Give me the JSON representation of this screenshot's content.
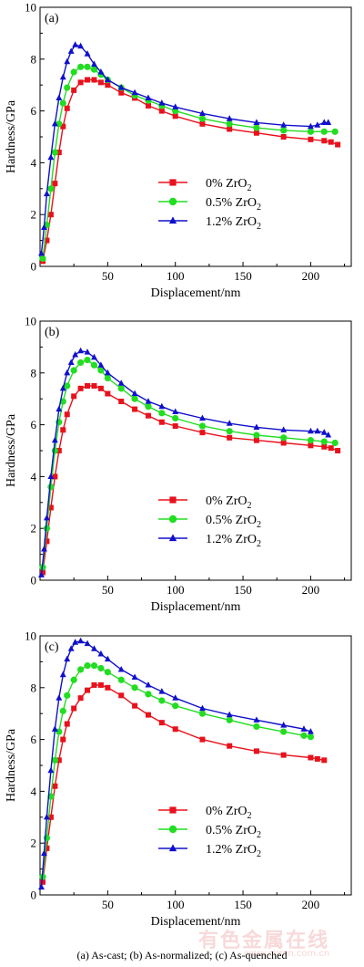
{
  "caption": "(a) As-cast; (b) As-normalized; (c) As-quenched",
  "watermark": "有色金属在线",
  "watermark_sub": "www.cnmn.com.cn",
  "colors": {
    "s0": "#e8111c",
    "s05": "#22dd22",
    "s12": "#1010cc"
  },
  "chart_data": [
    {
      "type": "line",
      "panel_label": "(a)",
      "xlabel": "Displacement/nm",
      "ylabel": "Hardness/GPa",
      "xlim": [
        0,
        230
      ],
      "ylim": [
        0,
        10
      ],
      "xticks": [
        "50",
        "100",
        "150",
        "200"
      ],
      "yticks": [
        "0",
        "2",
        "4",
        "6",
        "8",
        "10"
      ],
      "legend": "center",
      "series": [
        {
          "name": "0% ZrO",
          "sub": "2",
          "marker": "square",
          "x": [
            2,
            5,
            8,
            11,
            14,
            17,
            20,
            25,
            30,
            35,
            40,
            45,
            50,
            60,
            70,
            80,
            90,
            100,
            120,
            140,
            160,
            180,
            200,
            210,
            215,
            220
          ],
          "y": [
            0.2,
            1.0,
            2.0,
            3.2,
            4.4,
            5.4,
            6.1,
            6.8,
            7.1,
            7.2,
            7.2,
            7.1,
            7.0,
            6.7,
            6.5,
            6.2,
            6.0,
            5.8,
            5.5,
            5.3,
            5.15,
            5.0,
            4.9,
            4.85,
            4.8,
            4.7
          ]
        },
        {
          "name": "0.5% ZrO",
          "sub": "2",
          "marker": "circle",
          "x": [
            2,
            5,
            8,
            11,
            14,
            17,
            20,
            25,
            30,
            35,
            40,
            45,
            50,
            60,
            70,
            80,
            90,
            100,
            120,
            140,
            160,
            180,
            200,
            210,
            218
          ],
          "y": [
            0.3,
            1.6,
            3.0,
            4.4,
            5.5,
            6.3,
            6.9,
            7.5,
            7.7,
            7.7,
            7.6,
            7.4,
            7.2,
            6.9,
            6.6,
            6.4,
            6.2,
            6.0,
            5.7,
            5.5,
            5.35,
            5.25,
            5.2,
            5.2,
            5.2
          ]
        },
        {
          "name": "1.2% ZrO",
          "sub": "2",
          "marker": "triangle",
          "x": [
            1,
            3,
            5,
            8,
            11,
            14,
            17,
            20,
            23,
            26,
            30,
            35,
            40,
            45,
            50,
            60,
            70,
            80,
            90,
            100,
            120,
            140,
            160,
            180,
            200,
            205,
            210,
            213
          ],
          "y": [
            0.5,
            1.5,
            2.8,
            4.2,
            5.5,
            6.5,
            7.3,
            7.9,
            8.3,
            8.55,
            8.5,
            8.2,
            7.8,
            7.5,
            7.2,
            6.9,
            6.7,
            6.5,
            6.3,
            6.15,
            5.9,
            5.7,
            5.55,
            5.45,
            5.4,
            5.45,
            5.55,
            5.55
          ]
        }
      ]
    },
    {
      "type": "line",
      "panel_label": "(b)",
      "xlabel": "Displacement/nm",
      "ylabel": "Hardness/GPa",
      "xlim": [
        0,
        230
      ],
      "ylim": [
        0,
        10
      ],
      "xticks": [
        "50",
        "100",
        "150",
        "200"
      ],
      "yticks": [
        "0",
        "2",
        "4",
        "6",
        "8",
        "10"
      ],
      "legend": "center",
      "series": [
        {
          "name": "0% ZrO",
          "sub": "2",
          "marker": "square",
          "x": [
            2,
            5,
            8,
            11,
            14,
            17,
            20,
            25,
            30,
            35,
            40,
            45,
            50,
            60,
            70,
            80,
            90,
            100,
            120,
            140,
            160,
            180,
            200,
            210,
            215,
            220
          ],
          "y": [
            0.3,
            1.5,
            2.8,
            4.0,
            5.0,
            5.8,
            6.4,
            7.1,
            7.4,
            7.5,
            7.5,
            7.4,
            7.2,
            6.9,
            6.6,
            6.35,
            6.1,
            5.95,
            5.7,
            5.5,
            5.4,
            5.3,
            5.2,
            5.15,
            5.1,
            5.0
          ]
        },
        {
          "name": "0.5% ZrO",
          "sub": "2",
          "marker": "circle",
          "x": [
            2,
            5,
            8,
            11,
            14,
            17,
            20,
            25,
            30,
            35,
            40,
            45,
            50,
            60,
            70,
            80,
            90,
            100,
            120,
            140,
            160,
            180,
            200,
            210,
            218
          ],
          "y": [
            0.5,
            2.0,
            3.6,
            5.0,
            6.1,
            6.9,
            7.5,
            8.1,
            8.4,
            8.5,
            8.3,
            8.1,
            7.8,
            7.4,
            7.0,
            6.7,
            6.45,
            6.25,
            5.95,
            5.75,
            5.6,
            5.5,
            5.4,
            5.35,
            5.3
          ]
        },
        {
          "name": "1.2% ZrO",
          "sub": "2",
          "marker": "triangle",
          "x": [
            1,
            3,
            5,
            8,
            11,
            14,
            17,
            20,
            23,
            26,
            30,
            35,
            40,
            45,
            50,
            60,
            70,
            80,
            90,
            100,
            120,
            140,
            160,
            180,
            200,
            205,
            210,
            213
          ],
          "y": [
            0.2,
            1.2,
            2.4,
            4.0,
            5.4,
            6.6,
            7.4,
            8.0,
            8.4,
            8.7,
            8.85,
            8.8,
            8.6,
            8.3,
            8.0,
            7.6,
            7.2,
            6.9,
            6.7,
            6.5,
            6.25,
            6.05,
            5.9,
            5.8,
            5.75,
            5.75,
            5.7,
            5.6
          ]
        }
      ]
    },
    {
      "type": "line",
      "panel_label": "(c)",
      "xlabel": "Displacement/nm",
      "ylabel": "Hardness/GPa",
      "xlim": [
        0,
        230
      ],
      "ylim": [
        0,
        10
      ],
      "xticks": [
        "50",
        "100",
        "150",
        "200"
      ],
      "yticks": [
        "0",
        "2",
        "4",
        "6",
        "8",
        "10"
      ],
      "legend": "center",
      "series": [
        {
          "name": "0% ZrO",
          "sub": "2",
          "marker": "square",
          "x": [
            2,
            5,
            8,
            11,
            14,
            17,
            20,
            25,
            30,
            35,
            40,
            45,
            50,
            60,
            70,
            80,
            90,
            100,
            120,
            140,
            160,
            180,
            200,
            205,
            210
          ],
          "y": [
            0.5,
            1.8,
            3.0,
            4.2,
            5.2,
            6.0,
            6.6,
            7.2,
            7.6,
            7.9,
            8.1,
            8.1,
            8.0,
            7.7,
            7.3,
            6.95,
            6.65,
            6.4,
            6.0,
            5.75,
            5.55,
            5.4,
            5.3,
            5.25,
            5.2
          ]
        },
        {
          "name": "0.5% ZrO",
          "sub": "2",
          "marker": "circle",
          "x": [
            2,
            5,
            8,
            11,
            14,
            17,
            20,
            25,
            30,
            35,
            40,
            45,
            50,
            60,
            70,
            80,
            90,
            100,
            120,
            140,
            160,
            180,
            195,
            200
          ],
          "y": [
            0.7,
            2.2,
            3.8,
            5.2,
            6.3,
            7.1,
            7.7,
            8.3,
            8.7,
            8.85,
            8.85,
            8.75,
            8.6,
            8.3,
            8.0,
            7.75,
            7.5,
            7.3,
            7.0,
            6.75,
            6.5,
            6.3,
            6.15,
            6.1
          ]
        },
        {
          "name": "1.2% ZrO",
          "sub": "2",
          "marker": "triangle",
          "x": [
            1,
            3,
            5,
            8,
            11,
            14,
            17,
            20,
            23,
            26,
            30,
            35,
            40,
            45,
            50,
            60,
            70,
            80,
            90,
            100,
            120,
            140,
            160,
            180,
            195,
            200
          ],
          "y": [
            0.3,
            1.6,
            3.0,
            4.8,
            6.4,
            7.6,
            8.5,
            9.1,
            9.5,
            9.75,
            9.8,
            9.7,
            9.5,
            9.3,
            9.1,
            8.7,
            8.4,
            8.1,
            7.85,
            7.6,
            7.2,
            6.95,
            6.75,
            6.55,
            6.4,
            6.3
          ]
        }
      ]
    }
  ]
}
